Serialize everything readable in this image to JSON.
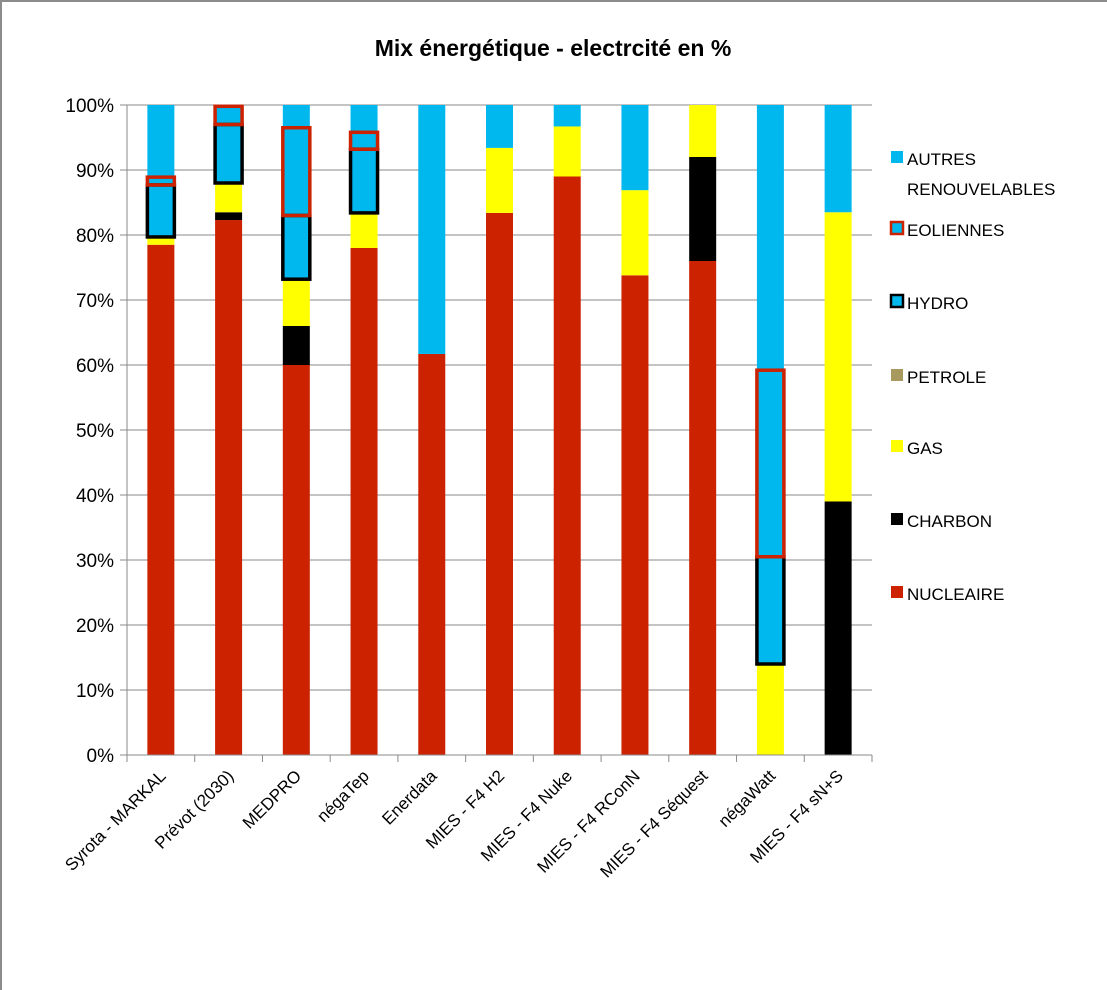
{
  "chart_data": {
    "type": "bar",
    "stacked": true,
    "title": "Mix énergétique - electrcité en %",
    "xlabel": "",
    "ylabel": "",
    "ylim": [
      0,
      100
    ],
    "yticks": [
      "0%",
      "10%",
      "20%",
      "30%",
      "40%",
      "50%",
      "60%",
      "70%",
      "80%",
      "90%",
      "100%"
    ],
    "grid": true,
    "legend_position": "right",
    "categories": [
      "Syrota - MARKAL",
      "Prévot (2030)",
      "MEDPRO",
      "négaTep",
      "Enerdata",
      "MIES - F4 H2",
      "MIES - F4 Nuke",
      "MIES - F4 RConN",
      "MIES - F4 Séquest",
      "négaWatt",
      "MIES - F4 sN+S"
    ],
    "series": [
      {
        "name": "NUCLEAIRE",
        "color": "#cc2200",
        "values": [
          78.5,
          82.3,
          60,
          78,
          61.7,
          83.4,
          89,
          73.8,
          76,
          0,
          0
        ]
      },
      {
        "name": "CHARBON",
        "color": "#000000",
        "values": [
          0,
          1.2,
          6,
          0,
          0,
          0,
          0,
          0,
          16,
          0,
          39
        ]
      },
      {
        "name": "GAS",
        "color": "#ffff00",
        "values": [
          1.2,
          4.5,
          7.2,
          5.4,
          0,
          10,
          7.7,
          13.1,
          8,
          14,
          44.5
        ]
      },
      {
        "name": "PETROLE",
        "color": "#a89a5e",
        "values": [
          0,
          0,
          0,
          0,
          0,
          0,
          0,
          0,
          0,
          0,
          0
        ]
      },
      {
        "name": "HYDRO",
        "color": "#00b8ee",
        "values": [
          8,
          9,
          9.8,
          9.8,
          0,
          0,
          0,
          0,
          0,
          16.5,
          0
        ]
      },
      {
        "name": "EOLIENNES",
        "color": "#00b8ee",
        "values": [
          1.2,
          2.8,
          13.5,
          2.6,
          0,
          0,
          0,
          0,
          0,
          28.7,
          0
        ]
      },
      {
        "name": "AUTRES RENOUVELABLES",
        "color": "#00b8ee",
        "values": [
          11.1,
          0.2,
          3.5,
          4.2,
          38.3,
          6.6,
          3.3,
          13.1,
          0,
          40.8,
          16.5
        ]
      }
    ],
    "legend": [
      {
        "label": "AUTRES RENOUVELABLES",
        "color": "#00b8ee",
        "border": "none"
      },
      {
        "label": "EOLIENNES",
        "color": "#00b8ee",
        "border": "#cc2200"
      },
      {
        "label": "HYDRO",
        "color": "#00b8ee",
        "border": "#000000"
      },
      {
        "label": "PETROLE",
        "color": "#a89a5e",
        "border": "none"
      },
      {
        "label": "GAS",
        "color": "#ffff00",
        "border": "none"
      },
      {
        "label": "CHARBON",
        "color": "#000000",
        "border": "none"
      },
      {
        "label": "NUCLEAIRE",
        "color": "#cc2200",
        "border": "none"
      }
    ]
  }
}
